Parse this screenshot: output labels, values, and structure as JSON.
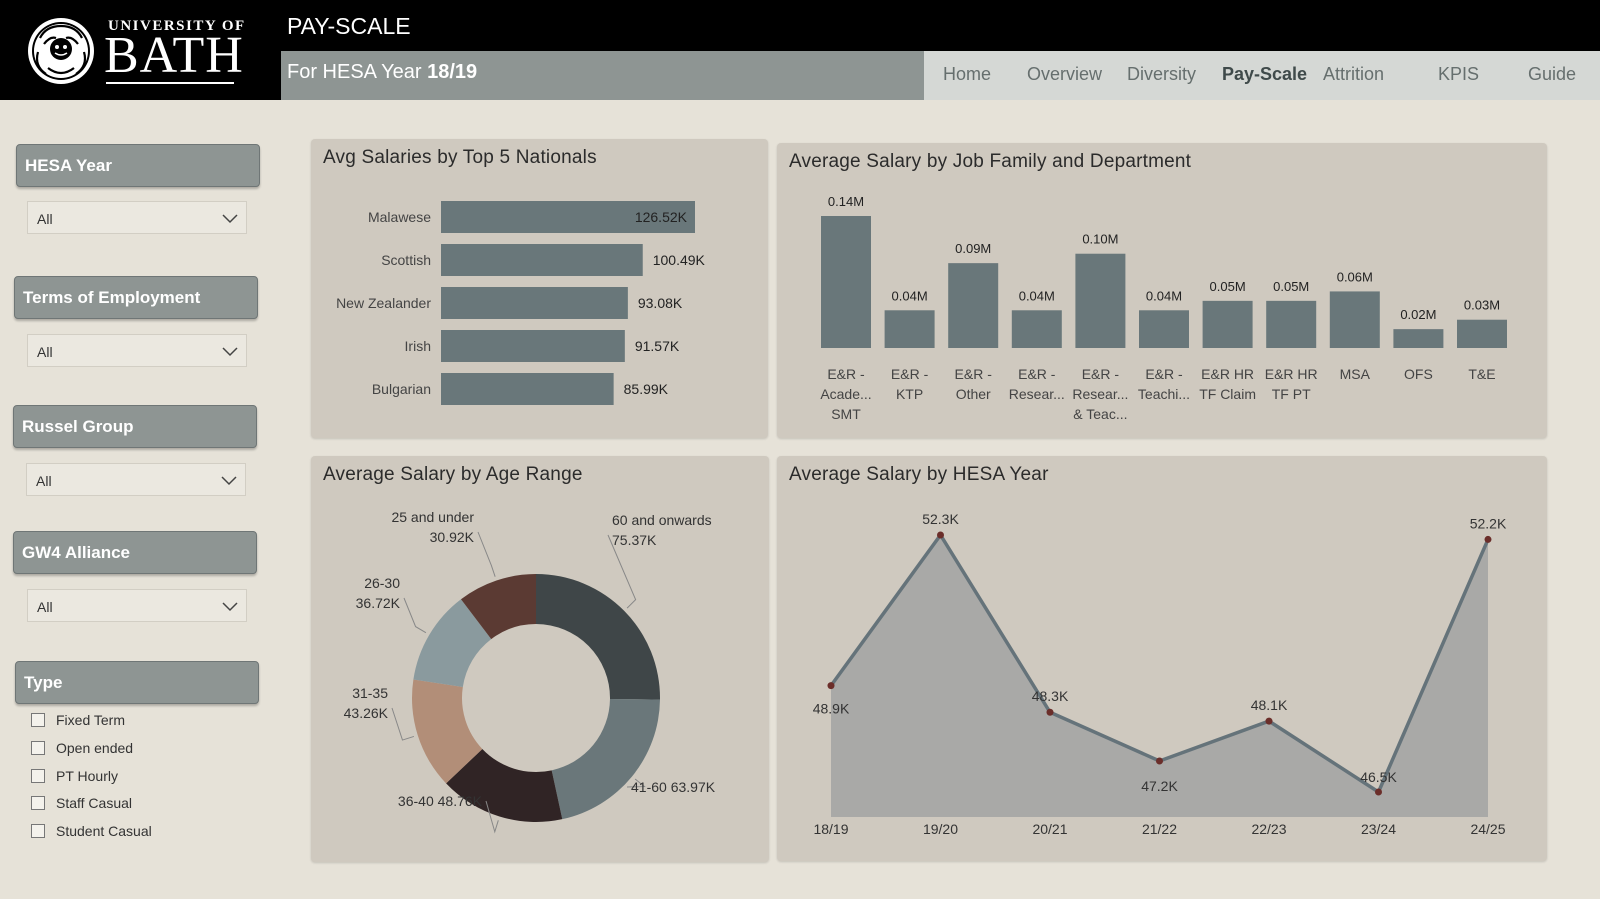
{
  "header": {
    "logo_small": "UNIVERSITY OF",
    "logo_big": "BATH",
    "page_title": "PAY-SCALE",
    "subtitle_prefix": "For HESA Year",
    "subtitle_year": "18/19"
  },
  "nav": {
    "items": [
      "Home",
      "Overview",
      "Diversity",
      "Pay-Scale",
      "Attrition",
      "KPIS",
      "Guide"
    ],
    "active": "Pay-Scale"
  },
  "filters": {
    "hesa_year": {
      "title": "HESA Year",
      "value": "All"
    },
    "terms": {
      "title": "Terms of Employment",
      "value": "All"
    },
    "russel": {
      "title": "Russel Group",
      "value": "All"
    },
    "gw4": {
      "title": "GW4 Alliance",
      "value": "All"
    },
    "type": {
      "title": "Type",
      "options": [
        "Fixed Term",
        "Open ended",
        "PT Hourly",
        "Staff Casual",
        "Student Casual"
      ]
    }
  },
  "colors": {
    "bar": "#69777a",
    "area": "#a9a9a7",
    "line": "#65737a",
    "marker": "#6b2e2a",
    "donut": [
      "#3f4648",
      "#6a777a",
      "#302425",
      "#b28e78",
      "#8a9a9e",
      "#5b3a33"
    ]
  },
  "chart_data": [
    {
      "type": "bar",
      "orientation": "horizontal",
      "title": "Avg Salaries by Top 5 Nationals",
      "categories": [
        "Malawese",
        "Scottish",
        "New Zealander",
        "Irish",
        "Bulgarian"
      ],
      "values": [
        126.52,
        100.49,
        93.08,
        91.57,
        85.99
      ],
      "labels": [
        "126.52K",
        "100.49K",
        "93.08K",
        "91.57K",
        "85.99K"
      ],
      "unit": "K"
    },
    {
      "type": "bar",
      "title": "Average Salary by Job Family and Department",
      "categories": [
        [
          "E&R -",
          "Acade...",
          "SMT"
        ],
        [
          "E&R -",
          "KTP"
        ],
        [
          "E&R -",
          "Other"
        ],
        [
          "E&R -",
          "Resear..."
        ],
        [
          "E&R -",
          "Resear...",
          "& Teac..."
        ],
        [
          "E&R -",
          "Teachi..."
        ],
        [
          "E&R HR",
          "TF Claim"
        ],
        [
          "E&R HR",
          "TF PT"
        ],
        [
          "MSA"
        ],
        [
          "OFS"
        ],
        [
          "T&E"
        ]
      ],
      "values": [
        0.14,
        0.04,
        0.09,
        0.04,
        0.1,
        0.04,
        0.05,
        0.05,
        0.06,
        0.02,
        0.03
      ],
      "labels": [
        "0.14M",
        "0.04M",
        "0.09M",
        "0.04M",
        "0.10M",
        "0.04M",
        "0.05M",
        "0.05M",
        "0.06M",
        "0.02M",
        "0.03M"
      ],
      "unit": "M"
    },
    {
      "type": "pie",
      "title": "Average Salary by Age Range",
      "categories": [
        "60 and onwards",
        "41-60",
        "36-40",
        "31-35",
        "26-30",
        "25 and under"
      ],
      "values": [
        75.37,
        63.97,
        48.76,
        43.26,
        36.72,
        30.92
      ],
      "labels": [
        "75.37K",
        "63.97K",
        "48.76K",
        "43.26K",
        "36.72K",
        "30.92K"
      ],
      "unit": "K"
    },
    {
      "type": "area",
      "title": "Average Salary by HESA Year",
      "x": [
        "18/19",
        "19/20",
        "20/21",
        "21/22",
        "22/23",
        "23/24",
        "24/25"
      ],
      "values": [
        48.9,
        52.3,
        48.3,
        47.2,
        48.1,
        46.5,
        52.2
      ],
      "labels": [
        "48.9K",
        "52.3K",
        "48.3K",
        "47.2K",
        "48.1K",
        "46.5K",
        "52.2K"
      ],
      "unit": "K"
    }
  ]
}
